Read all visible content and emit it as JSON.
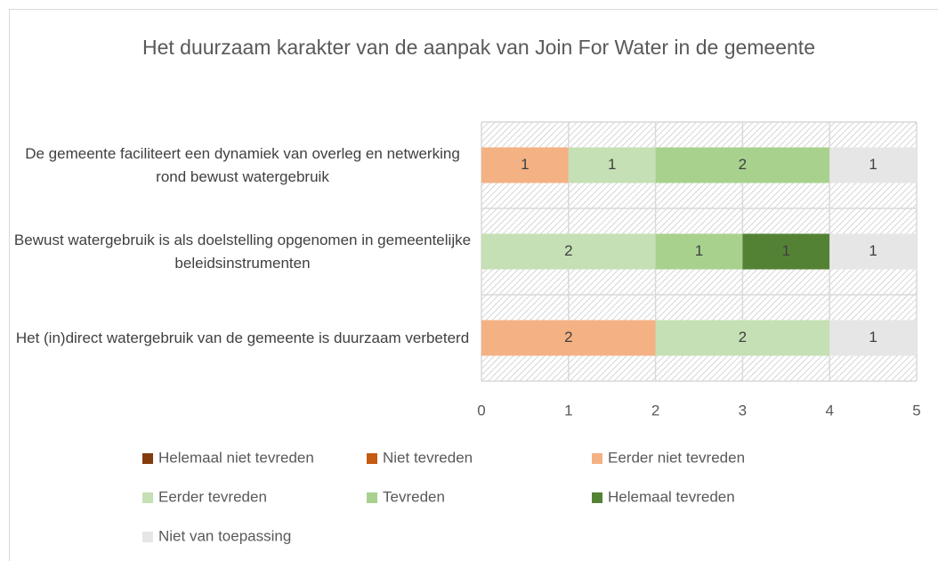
{
  "chart_data": {
    "type": "stacked_barh",
    "title": "Het duurzaam karakter van de aanpak van Join For Water in de gemeente",
    "categories": [
      "De gemeente faciliteert een dynamiek van overleg en netwerking rond bewust watergebruik",
      "Bewust watergebruik is als doelstelling opgenomen in gemeentelijke beleidsinstrumenten",
      "Het (in)direct watergebruik van de gemeente is duurzaam verbeterd"
    ],
    "series": [
      {
        "name": "Helemaal niet tevreden",
        "color": "#843c0c",
        "values": [
          null,
          null,
          null
        ]
      },
      {
        "name": "Niet tevreden",
        "color": "#c55a11",
        "values": [
          null,
          null,
          null
        ]
      },
      {
        "name": "Eerder niet tevreden",
        "color": "#f4b183",
        "values": [
          1,
          null,
          2
        ]
      },
      {
        "name": "Eerder tevreden",
        "color": "#c5e0b4",
        "values": [
          1,
          2,
          2
        ]
      },
      {
        "name": "Tevreden",
        "color": "#a9d18e",
        "values": [
          2,
          1,
          null
        ]
      },
      {
        "name": "Helemaal tevreden",
        "color": "#548235",
        "values": [
          null,
          1,
          null
        ]
      },
      {
        "name": "Niet van toepassing",
        "color": "#e7e6e6",
        "values": [
          1,
          1,
          1
        ]
      }
    ],
    "xlim": [
      0,
      5
    ],
    "xticks": [
      0,
      1,
      2,
      3,
      4,
      5
    ],
    "grid": true,
    "legend": "bottom"
  }
}
